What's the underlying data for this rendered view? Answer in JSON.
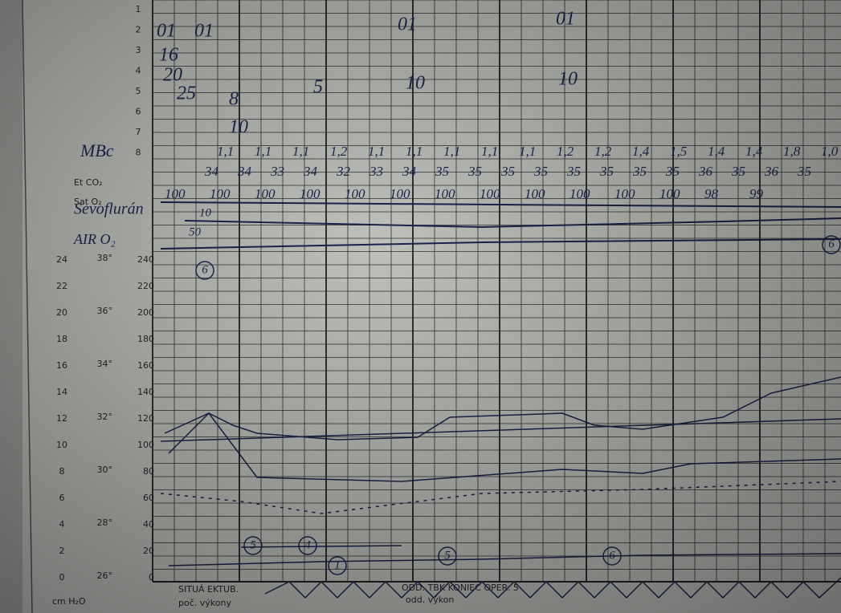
{
  "form": {
    "row_numbers": [
      "1",
      "2",
      "3",
      "4",
      "5",
      "6",
      "7",
      "8"
    ],
    "row_labels": [
      "Et CO₂",
      "Sat O₂"
    ],
    "cmh2o_scale": [
      "24",
      "22",
      "20",
      "18",
      "16",
      "14",
      "12",
      "10",
      "8",
      "6",
      "4",
      "2",
      "0"
    ],
    "temp_scale": [
      "38°",
      "36°",
      "34°",
      "32°",
      "30°",
      "28°",
      "26°"
    ],
    "pressure_scale": [
      "240",
      "220",
      "200",
      "180",
      "160",
      "140",
      "120",
      "100",
      "80",
      "60",
      "40",
      "20",
      "0"
    ],
    "unit": "cm H₂O"
  },
  "handwriting": {
    "left_notes": [
      "MBc",
      "Sevoflurán",
      "AIR O₂"
    ],
    "top_marks": [
      "01",
      "01",
      "01",
      "01",
      "16",
      "20",
      "25",
      "5",
      "10",
      "10",
      "8",
      "10"
    ],
    "row8_values": [
      "1,1",
      "1,1",
      "1,1",
      "1,2",
      "1,1",
      "1,1",
      "1,1",
      "1,1",
      "1,1",
      "1,2",
      "1,2",
      "1,4",
      "1,5",
      "1,4",
      "1,4",
      "1,8",
      "1,0"
    ],
    "etco2_values": [
      "34",
      "34",
      "33",
      "34",
      "32",
      "33",
      "34",
      "35",
      "35",
      "35",
      "35",
      "35",
      "35",
      "35",
      "35",
      "36",
      "35",
      "36",
      "35"
    ],
    "sato2_values": [
      "100",
      "100",
      "100",
      "100",
      "100",
      "100",
      "100",
      "100",
      "100",
      "100",
      "100",
      "100",
      "98",
      "99"
    ],
    "line_notes": [
      "10",
      "50"
    ],
    "circled": [
      "6",
      "5",
      "4",
      "1",
      "5",
      "6",
      "6"
    ],
    "bottom_notes": [
      "SITUÁ EKTUB.",
      "poč. výkony",
      "ODD. TBK KONIEC OPER. 5",
      "odd. výkon"
    ]
  }
}
